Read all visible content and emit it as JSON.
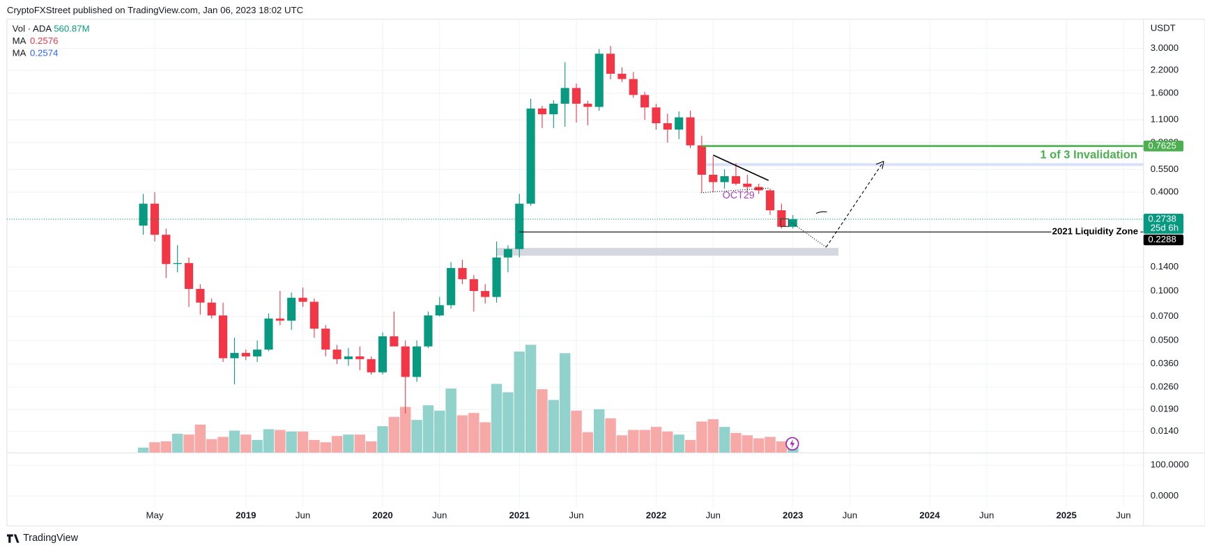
{
  "header": "CryptoFXStreet published on TradingView.com, Jan 06, 2023 18:02 UTC",
  "footer": "TradingView",
  "chart_data": {
    "type": "candlestick",
    "currency": "USDT",
    "log_scale": true,
    "grid": true,
    "up_color": "#089981",
    "down_color": "#f23645",
    "x": [
      "2018-04",
      "2018-05",
      "2018-06",
      "2018-07",
      "2018-08",
      "2018-09",
      "2018-10",
      "2018-11",
      "2018-12",
      "2019-01",
      "2019-02",
      "2019-03",
      "2019-04",
      "2019-05",
      "2019-06",
      "2019-07",
      "2019-08",
      "2019-09",
      "2019-10",
      "2019-11",
      "2019-12",
      "2020-01",
      "2020-02",
      "2020-03",
      "2020-04",
      "2020-05",
      "2020-06",
      "2020-07",
      "2020-08",
      "2020-09",
      "2020-10",
      "2020-11",
      "2020-12",
      "2021-01",
      "2021-02",
      "2021-03",
      "2021-04",
      "2021-05",
      "2021-06",
      "2021-07",
      "2021-08",
      "2021-09",
      "2021-10",
      "2021-11",
      "2021-12",
      "2022-01",
      "2022-02",
      "2022-03",
      "2022-04",
      "2022-05",
      "2022-06",
      "2022-07",
      "2022-08",
      "2022-09",
      "2022-10",
      "2022-11",
      "2022-12",
      "2023-01"
    ],
    "open": [
      0.25,
      0.34,
      0.22,
      0.146,
      0.148,
      0.103,
      0.085,
      0.071,
      0.039,
      0.042,
      0.04,
      0.044,
      0.068,
      0.066,
      0.091,
      0.086,
      0.059,
      0.044,
      0.0385,
      0.04,
      0.0385,
      0.032,
      0.053,
      0.046,
      0.03,
      0.046,
      0.071,
      0.082,
      0.138,
      0.118,
      0.1,
      0.092,
      0.16,
      0.18,
      0.34,
      1.29,
      1.19,
      1.38,
      1.72,
      1.38,
      1.32,
      2.78,
      2.1,
      1.95,
      1.56,
      1.31,
      1.05,
      0.96,
      1.14,
      0.77,
      0.51,
      0.46,
      0.5,
      0.45,
      0.43,
      0.41,
      0.31,
      0.246
    ],
    "high": [
      0.39,
      0.4,
      0.24,
      0.19,
      0.16,
      0.11,
      0.09,
      0.085,
      0.052,
      0.044,
      0.05,
      0.073,
      0.1,
      0.098,
      0.105,
      0.09,
      0.062,
      0.047,
      0.045,
      0.046,
      0.04,
      0.056,
      0.075,
      0.05,
      0.05,
      0.075,
      0.092,
      0.15,
      0.155,
      0.125,
      0.11,
      0.2,
      0.19,
      0.39,
      1.48,
      1.34,
      1.45,
      2.47,
      1.83,
      1.44,
      2.97,
      3.1,
      2.3,
      2.15,
      1.63,
      1.38,
      1.2,
      1.24,
      1.25,
      0.88,
      0.66,
      0.55,
      0.6,
      0.51,
      0.45,
      0.42,
      0.34,
      0.29
    ],
    "low": [
      0.22,
      0.2,
      0.12,
      0.13,
      0.08,
      0.072,
      0.068,
      0.037,
      0.027,
      0.038,
      0.037,
      0.043,
      0.062,
      0.058,
      0.08,
      0.052,
      0.04,
      0.036,
      0.035,
      0.033,
      0.031,
      0.031,
      0.046,
      0.018,
      0.028,
      0.045,
      0.07,
      0.078,
      0.11,
      0.075,
      0.084,
      0.085,
      0.13,
      0.16,
      0.33,
      0.98,
      0.98,
      1.0,
      1.06,
      1.02,
      1.25,
      1.94,
      1.87,
      1.5,
      1.1,
      0.96,
      0.8,
      0.84,
      0.74,
      0.4,
      0.4,
      0.42,
      0.44,
      0.4,
      0.39,
      0.29,
      0.24,
      0.24
    ],
    "close": [
      0.34,
      0.22,
      0.146,
      0.148,
      0.103,
      0.085,
      0.071,
      0.039,
      0.042,
      0.04,
      0.044,
      0.068,
      0.066,
      0.091,
      0.086,
      0.059,
      0.044,
      0.0385,
      0.04,
      0.0385,
      0.032,
      0.053,
      0.046,
      0.03,
      0.046,
      0.071,
      0.082,
      0.138,
      0.118,
      0.1,
      0.092,
      0.16,
      0.18,
      0.34,
      1.29,
      1.19,
      1.38,
      1.72,
      1.38,
      1.32,
      2.78,
      2.1,
      1.95,
      1.56,
      1.31,
      1.05,
      0.96,
      1.14,
      0.77,
      0.51,
      0.46,
      0.5,
      0.45,
      0.43,
      0.41,
      0.31,
      0.246,
      0.2738
    ],
    "volume": {
      "name": "Vol · ADA",
      "value_label": "560.87M",
      "up_color": "#92d2cc",
      "down_color": "#f7a9a7",
      "legend_color": "#089981",
      "ylim": [
        0,
        24300
      ],
      "values": [
        300,
        600,
        650,
        1075,
        1030,
        1590,
        775,
        900,
        1250,
        1030,
        730,
        1330,
        1290,
        1200,
        1200,
        730,
        600,
        950,
        1030,
        1030,
        650,
        1500,
        2020,
        2580,
        1850,
        2670,
        2370,
        3610,
        2110,
        2240,
        1720,
        3870,
        3400,
        5680,
        6060,
        3570,
        2970,
        5590,
        2370,
        1160,
        2450,
        1940,
        990,
        1290,
        1290,
        1460,
        1200,
        1030,
        730,
        1760,
        1890,
        1460,
        1120,
        990,
        820,
        900,
        650,
        560.87
      ]
    },
    "indicators": [
      {
        "name": "MA",
        "value": 0.2576,
        "color": "#f23645"
      },
      {
        "name": "MA",
        "value": 0.2574,
        "color": "#2962ff"
      }
    ],
    "xlim": [
      "2017-04",
      "2025-08"
    ],
    "xticks": [
      {
        "value": "2018-05",
        "label": "May"
      },
      {
        "value": "2019-01",
        "label": "2019"
      },
      {
        "value": "2019-06",
        "label": "Jun"
      },
      {
        "value": "2020-01",
        "label": "2020"
      },
      {
        "value": "2020-06",
        "label": "Jun"
      },
      {
        "value": "2021-01",
        "label": "2021"
      },
      {
        "value": "2021-06",
        "label": "Jun"
      },
      {
        "value": "2022-01",
        "label": "2022"
      },
      {
        "value": "2022-06",
        "label": "Jun"
      },
      {
        "value": "2023-01",
        "label": "2023"
      },
      {
        "value": "2023-06",
        "label": "Jun"
      },
      {
        "value": "2024-01",
        "label": "2024"
      },
      {
        "value": "2024-06",
        "label": "Jun"
      },
      {
        "value": "2025-01",
        "label": "2025"
      },
      {
        "value": "2025-06",
        "label": "Jun"
      }
    ],
    "ylim": [
      0.01034,
      4.51
    ],
    "yticks": [
      {
        "value": 3,
        "label": "3.0000"
      },
      {
        "value": 2.2,
        "label": "2.2000"
      },
      {
        "value": 1.6,
        "label": "1.6000"
      },
      {
        "value": 1.1,
        "label": "1.1000"
      },
      {
        "value": 0.8,
        "label": "0.8000"
      },
      {
        "value": 0.55,
        "label": "0.5500"
      },
      {
        "value": 0.4,
        "label": "0.4000"
      },
      {
        "value": 0.14,
        "label": "0.1400"
      },
      {
        "value": 0.1,
        "label": "0.1000"
      },
      {
        "value": 0.07,
        "label": "0.0700"
      },
      {
        "value": 0.05,
        "label": "0.0500"
      },
      {
        "value": 0.036,
        "label": "0.0360"
      },
      {
        "value": 0.026,
        "label": "0.0260"
      },
      {
        "value": 0.019,
        "label": "0.0190"
      },
      {
        "value": 0.014,
        "label": "0.0140"
      }
    ],
    "last_price": {
      "value": 0.2738,
      "countdown": "25d 6h",
      "color": "#089981"
    },
    "levels": [
      {
        "value": 0.7625,
        "text": "1 of 3 Invalidation",
        "color": "#4caf50",
        "start": "2022-05"
      },
      {
        "value": 0.2288,
        "text": "2021 Liquidity Zone",
        "color": "#000000",
        "start": "2021-01"
      }
    ],
    "zones": [
      {
        "from": 0.577,
        "to": 0.6,
        "start": "2022-05",
        "end": "2025-08",
        "color": "#d4defa"
      },
      {
        "from": 0.164,
        "to": 0.183,
        "start": "2020-11",
        "end": "2023-05",
        "color": "#d1d4dc"
      }
    ],
    "annotation": "OCT29",
    "pane2": {
      "ylim": [
        -35,
        140
      ],
      "yticks": [
        {
          "value": 100,
          "label": "100.0000"
        },
        {
          "value": 0,
          "label": "0.0000"
        }
      ]
    }
  }
}
